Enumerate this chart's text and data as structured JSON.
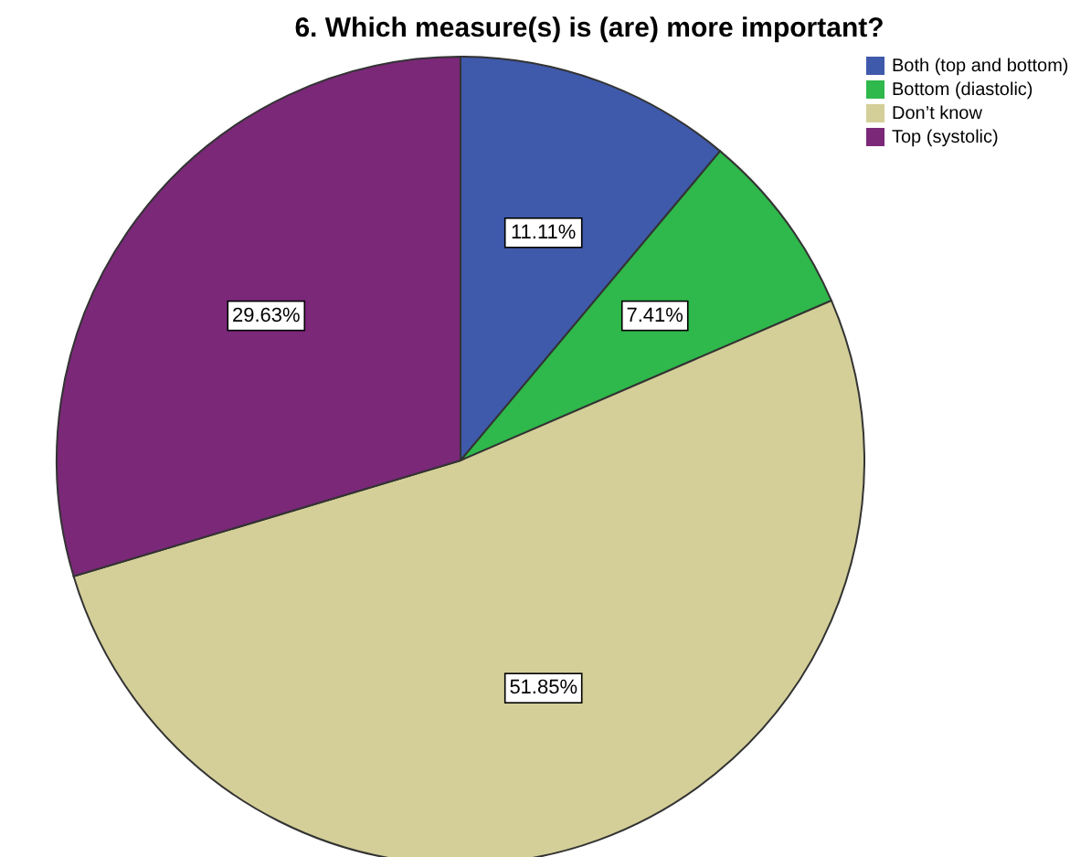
{
  "chart_data": {
    "type": "pie",
    "title": "6. Which measure(s) is (are) more important?",
    "categories": [
      "Both (top and bottom)",
      "Bottom (diastolic)",
      "Don’t know",
      "Top (systolic)"
    ],
    "values": [
      11.11,
      7.41,
      51.85,
      29.63
    ],
    "colors": [
      "#3f59ab",
      "#2fb84b",
      "#d4cf98",
      "#7b2879"
    ],
    "value_labels": [
      "11.11%",
      "7.41%",
      "51.85%",
      "29.63%"
    ],
    "legend": "top right"
  }
}
